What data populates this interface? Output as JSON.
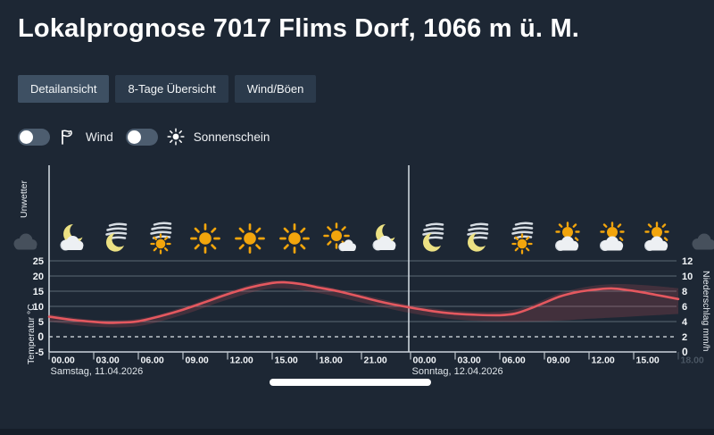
{
  "header": {
    "title": "Lokalprognose 7017 Flims Dorf, 1066 m ü. M."
  },
  "tabs": {
    "items": [
      {
        "label": "Detailansicht",
        "active": true
      },
      {
        "label": "8-Tage Übersicht",
        "active": false
      },
      {
        "label": "Wind/Böen",
        "active": false
      }
    ]
  },
  "toggles": [
    {
      "label": "Wind",
      "state": "off",
      "icon": "wind-flag-icon"
    },
    {
      "label": "Sonnenschein",
      "state": "off",
      "icon": "sun-icon"
    }
  ],
  "chart_data": {
    "type": "line",
    "top_left_label": "Unwetter",
    "left_axis": {
      "label": "Temperatur °C",
      "ticks": [
        25,
        20,
        15,
        10,
        5,
        0,
        -5
      ],
      "range": [
        -5,
        25
      ]
    },
    "right_axis": {
      "label": "Niederschlag mm/h",
      "ticks": [
        12,
        10,
        8,
        6,
        4,
        2,
        0
      ],
      "range": [
        0,
        12
      ]
    },
    "x_axis": {
      "days": [
        {
          "label": "Samstag, 11.04.2026",
          "ticks": [
            "00.00",
            "03.00",
            "06.00",
            "09.00",
            "12.00",
            "15.00",
            "18.00",
            "21.00"
          ],
          "faded_last_tick": false
        },
        {
          "label": "Sonntag, 12.04.2026",
          "ticks": [
            "00.00",
            "03.00",
            "06.00",
            "09.00",
            "12.00",
            "15.00",
            "18.00"
          ],
          "faded_last_tick": true
        }
      ]
    },
    "x_unit": "hours_from_saturday_00_00",
    "temperature_series": {
      "name": "Temperatur",
      "unit": "°C",
      "color": "#e4585f",
      "points": [
        [
          0,
          6.6
        ],
        [
          1.5,
          5.6
        ],
        [
          3,
          4.9
        ],
        [
          4,
          4.6
        ],
        [
          5,
          4.7
        ],
        [
          6,
          5.1
        ],
        [
          7.5,
          6.8
        ],
        [
          9,
          8.9
        ],
        [
          10.5,
          11.4
        ],
        [
          12,
          14.0
        ],
        [
          13.5,
          16.2
        ],
        [
          15,
          17.7
        ],
        [
          15.8,
          17.9
        ],
        [
          17,
          17.3
        ],
        [
          18,
          16.3
        ],
        [
          19.5,
          14.9
        ],
        [
          21,
          13.1
        ],
        [
          22.5,
          11.3
        ],
        [
          24,
          9.6
        ],
        [
          25.5,
          8.4
        ],
        [
          27,
          7.6
        ],
        [
          28.5,
          7.2
        ],
        [
          30,
          7.1
        ],
        [
          31,
          7.6
        ],
        [
          32,
          9.2
        ],
        [
          33,
          11.2
        ],
        [
          34,
          13.2
        ],
        [
          35,
          14.5
        ],
        [
          36,
          15.3
        ],
        [
          37.5,
          15.9
        ],
        [
          39,
          15.1
        ],
        [
          40.5,
          13.8
        ],
        [
          42,
          12.4
        ]
      ]
    },
    "uncertainty_band": {
      "color": "rgba(228,88,95,0.19)",
      "points": [
        [
          0,
          5.0,
          7.4
        ],
        [
          3,
          3.3,
          5.6
        ],
        [
          6,
          3.5,
          5.9
        ],
        [
          9,
          7.2,
          9.7
        ],
        [
          12,
          12.2,
          14.8
        ],
        [
          15,
          15.9,
          18.5
        ],
        [
          18,
          14.5,
          17.1
        ],
        [
          21,
          11.3,
          13.9
        ],
        [
          24,
          7.8,
          10.4
        ],
        [
          27,
          5.7,
          8.6
        ],
        [
          30,
          5.0,
          8.3
        ],
        [
          32,
          5.0,
          10.3
        ],
        [
          34,
          5.3,
          14.3
        ],
        [
          36,
          5.9,
          16.6
        ],
        [
          37.5,
          6.3,
          17.3
        ],
        [
          39,
          6.7,
          17.2
        ],
        [
          40.5,
          7.1,
          16.7
        ],
        [
          42,
          7.5,
          16.0
        ]
      ]
    },
    "weather_icons": {
      "saturday": [
        "moon-cloud",
        "moon-fog",
        "sun-fog",
        "sun",
        "sun",
        "sun",
        "sun-small-cloud",
        "moon-cloud"
      ],
      "sunday": [
        "moon-fog",
        "moon-fog",
        "sun-fog",
        "sun-cloud",
        "sun-cloud",
        "sun-cloud"
      ],
      "edge_left": "gray-cloud",
      "edge_right": "gray-cloud"
    },
    "grid": true,
    "zero_line_dashed": true
  },
  "scrollbar": {
    "visible": true
  },
  "colors": {
    "background": "#1d2734",
    "tab_active": "#3e5063",
    "tab_inactive": "#2b3a4b",
    "line": "#e4585f",
    "band": "rgba(228,88,95,0.19)",
    "grid": "#5c6874",
    "axis": "#ccd4db",
    "tick_text": "#f2f5f8",
    "faded_tick_text": "#4a5663",
    "sun": "#f2a50c",
    "moon": "#ece183",
    "fog": "#d7dde3",
    "cloud": "#edf0f3",
    "gray_cloud": "#46505c"
  }
}
